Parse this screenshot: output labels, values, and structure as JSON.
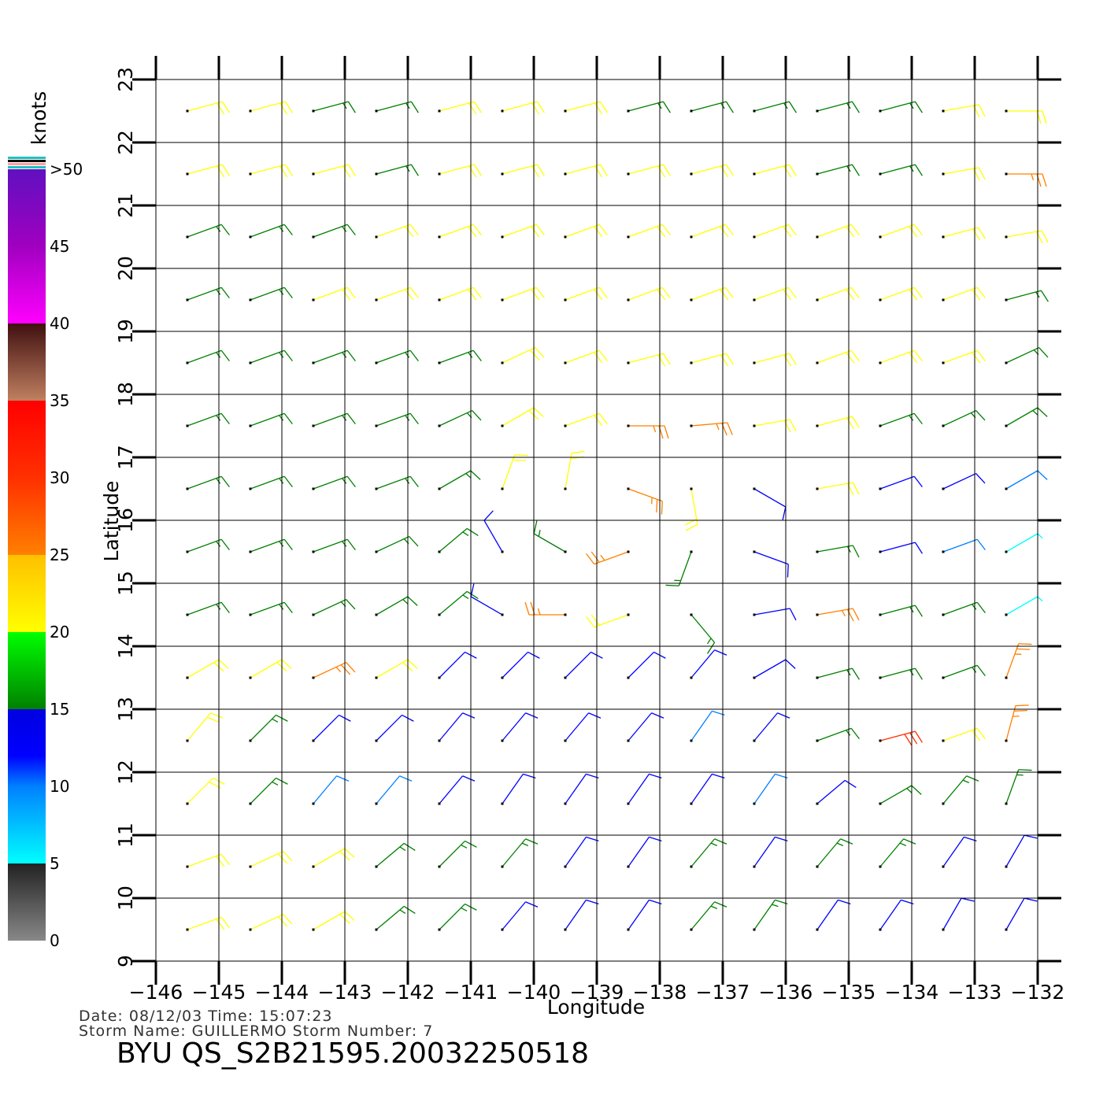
{
  "chart_data": {
    "type": "wind-barbs",
    "xlabel": "Longitude",
    "ylabel": "Latitude",
    "xlim": [
      -146,
      -132
    ],
    "ylim": [
      9,
      23
    ],
    "xticks": [
      {
        "value": -146,
        "label": "−146"
      },
      {
        "value": -145,
        "label": "−145"
      },
      {
        "value": -144,
        "label": "−144"
      },
      {
        "value": -143,
        "label": "−143"
      },
      {
        "value": -142,
        "label": "−142"
      },
      {
        "value": -141,
        "label": "−141"
      },
      {
        "value": -140,
        "label": "−140"
      },
      {
        "value": -139,
        "label": "−139"
      },
      {
        "value": -138,
        "label": "−138"
      },
      {
        "value": -137,
        "label": "−137"
      },
      {
        "value": -136,
        "label": "−136"
      },
      {
        "value": -135,
        "label": "−135"
      },
      {
        "value": -134,
        "label": "−134"
      },
      {
        "value": -133,
        "label": "−133"
      },
      {
        "value": -132,
        "label": "−132"
      }
    ],
    "yticks": [
      9,
      10,
      11,
      12,
      13,
      14,
      15,
      16,
      17,
      18,
      19,
      20,
      21,
      22,
      23
    ],
    "grid": true,
    "colorbar": {
      "label": "knots",
      "lim": [
        0,
        50
      ],
      "ticks": [
        0,
        5,
        10,
        15,
        20,
        25,
        30,
        35,
        40,
        45,
        {
          "value": 50,
          "label": ">50"
        }
      ],
      "stops": [
        {
          "value": 0,
          "color": "#888888"
        },
        {
          "value": 5,
          "color": "#222222"
        },
        {
          "value": 5,
          "color": "#00ffff"
        },
        {
          "value": 10,
          "color": "#0080ff"
        },
        {
          "value": 12,
          "color": "#0000ff"
        },
        {
          "value": 15,
          "color": "#0000e0"
        },
        {
          "value": 15,
          "color": "#008000"
        },
        {
          "value": 20,
          "color": "#00ff00"
        },
        {
          "value": 20,
          "color": "#ffff00"
        },
        {
          "value": 25,
          "color": "#ffc000"
        },
        {
          "value": 25,
          "color": "#ff8000"
        },
        {
          "value": 30,
          "color": "#ff3000"
        },
        {
          "value": 35,
          "color": "#ff0000"
        },
        {
          "value": 35,
          "color": "#c08060"
        },
        {
          "value": 40,
          "color": "#401010"
        },
        {
          "value": 40,
          "color": "#ff00ff"
        },
        {
          "value": 45,
          "color": "#a000c0"
        },
        {
          "value": 50,
          "color": "#6010c0"
        }
      ]
    },
    "wind": {
      "lons": [
        -145.5,
        -144.5,
        -143.5,
        -142.5,
        -141.5,
        -140.5,
        -139.5,
        -138.5,
        -137.5,
        -136.5,
        -135.5,
        -134.5,
        -133.5,
        -132.5
      ],
      "lats": [
        22.5,
        21.5,
        20.5,
        19.5,
        18.5,
        17.5,
        16.5,
        15.5,
        14.5,
        13.5,
        12.5,
        11.5,
        10.5,
        9.5
      ],
      "speed": [
        [
          21,
          22,
          18,
          18,
          20,
          21,
          21,
          19,
          19,
          18,
          18,
          18,
          21,
          24
        ],
        [
          21,
          21,
          20,
          18,
          21,
          21,
          21,
          20,
          21,
          20,
          19,
          19,
          21,
          26
        ],
        [
          18,
          18,
          18,
          21,
          21,
          21,
          21,
          21,
          20,
          20,
          20,
          21,
          21,
          20
        ],
        [
          18,
          18,
          20,
          21,
          21,
          21,
          21,
          21,
          21,
          20,
          21,
          21,
          20,
          19
        ],
        [
          18,
          18,
          18,
          19,
          19,
          21,
          21,
          20,
          21,
          21,
          21,
          20,
          20,
          18
        ],
        [
          18,
          18,
          18,
          18,
          19,
          20,
          24,
          27,
          27,
          24,
          21,
          19,
          17,
          16
        ],
        [
          17,
          17,
          17,
          17,
          18,
          20,
          22,
          28,
          20,
          14,
          22,
          14,
          12,
          11
        ],
        [
          17,
          17,
          16,
          16,
          17,
          14,
          18,
          25,
          16,
          14,
          15,
          13,
          10,
          7
        ],
        [
          18,
          17,
          16,
          15,
          15,
          13,
          28,
          20,
          15,
          13,
          25,
          18,
          15,
          8
        ],
        [
          21,
          22,
          26,
          24,
          14,
          13,
          13,
          13,
          12,
          13,
          17,
          19,
          19,
          26
        ],
        [
          23,
          18,
          12,
          12,
          13,
          13,
          12,
          12,
          11,
          12,
          18,
          30,
          20,
          25
        ],
        [
          24,
          15,
          11,
          10,
          12,
          12,
          13,
          13,
          12,
          11,
          14,
          17,
          15,
          15
        ],
        [
          24,
          20,
          21,
          18,
          16,
          17,
          13,
          14,
          16,
          13,
          15,
          16,
          13,
          13
        ],
        [
          21,
          20,
          20,
          17,
          16,
          14,
          14,
          13,
          16,
          15,
          14,
          13,
          12,
          13
        ]
      ],
      "dir": [
        [
          75,
          75,
          75,
          75,
          75,
          75,
          75,
          75,
          75,
          75,
          75,
          75,
          80,
          90
        ],
        [
          75,
          75,
          75,
          75,
          75,
          75,
          75,
          75,
          75,
          75,
          75,
          75,
          80,
          90
        ],
        [
          70,
          70,
          70,
          70,
          70,
          70,
          70,
          70,
          70,
          70,
          70,
          70,
          75,
          80
        ],
        [
          70,
          70,
          70,
          70,
          70,
          70,
          70,
          70,
          70,
          70,
          70,
          70,
          70,
          75
        ],
        [
          70,
          70,
          70,
          70,
          70,
          65,
          70,
          75,
          75,
          75,
          70,
          70,
          70,
          65
        ],
        [
          70,
          70,
          70,
          70,
          65,
          60,
          70,
          90,
          85,
          80,
          75,
          70,
          65,
          60
        ],
        [
          70,
          70,
          70,
          70,
          60,
          20,
          10,
          110,
          170,
          120,
          80,
          70,
          65,
          60
        ],
        [
          70,
          70,
          70,
          65,
          50,
          330,
          300,
          250,
          200,
          110,
          80,
          75,
          70,
          60
        ],
        [
          70,
          70,
          65,
          60,
          50,
          300,
          270,
          250,
          140,
          80,
          80,
          75,
          70,
          60
        ],
        [
          60,
          60,
          65,
          60,
          45,
          45,
          45,
          45,
          40,
          60,
          75,
          75,
          70,
          20
        ],
        [
          40,
          45,
          45,
          45,
          40,
          40,
          40,
          40,
          35,
          40,
          70,
          75,
          70,
          15
        ],
        [
          45,
          45,
          40,
          40,
          40,
          35,
          35,
          35,
          35,
          35,
          50,
          60,
          40,
          20
        ],
        [
          70,
          65,
          60,
          50,
          45,
          40,
          35,
          35,
          40,
          35,
          40,
          40,
          35,
          30
        ],
        [
          70,
          65,
          60,
          50,
          45,
          40,
          35,
          35,
          40,
          35,
          35,
          35,
          30,
          30
        ]
      ]
    },
    "date_line": "Date:  08/12/03   Time:  15:07:23",
    "storm_line": "Storm  Name:  GUILLERMO    Storm  Number:  7",
    "title": "BYU  QS_S2B21595.20032250518"
  }
}
